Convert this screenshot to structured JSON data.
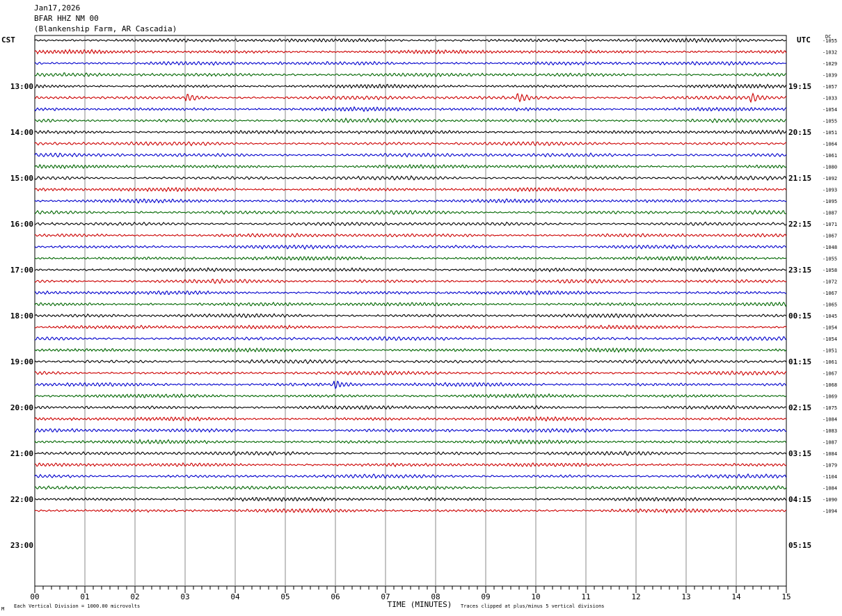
{
  "header": {
    "date": "Jan17,2026",
    "station": "BFAR HHZ NM 00",
    "location": "(Blankenship Farm, AR Cascadia)"
  },
  "corners": {
    "left_tz": "CST",
    "right_tz": "UTC",
    "dc_label": "DC"
  },
  "footer": {
    "scale_note": "Each Vertical Division = 1000.00 microvolts",
    "clip_note": "Traces clipped at plus/minus 5 vertical divisions",
    "corner_mark": "M"
  },
  "chart_data": {
    "type": "line",
    "chart_kind": "helicorder",
    "xlabel": "TIME (MINUTES)",
    "x_ticks": [
      "00",
      "01",
      "02",
      "03",
      "04",
      "05",
      "06",
      "07",
      "08",
      "09",
      "10",
      "11",
      "12",
      "13",
      "14",
      "15"
    ],
    "xlim": [
      0,
      15
    ],
    "hour_labels_local": [
      "13:00",
      "14:00",
      "15:00",
      "16:00",
      "17:00",
      "18:00",
      "19:00",
      "20:00",
      "21:00",
      "22:00",
      "23:00"
    ],
    "hour_labels_utc": [
      "19:15",
      "20:15",
      "21:15",
      "22:15",
      "23:15",
      "00:15",
      "01:15",
      "02:15",
      "03:15",
      "04:15",
      "05:15"
    ],
    "trace_colors": [
      "#000000",
      "#cc0000",
      "#0000cc",
      "#006600"
    ],
    "dc_offsets": [
      "-1055",
      "-1032",
      "-1029",
      "-1039",
      "-1057",
      "-1033",
      "-1054",
      "-1055",
      "-1051",
      "-1064",
      "-1061",
      "-1080",
      "-1092",
      "-1093",
      "-1095",
      "-1087",
      "-1071",
      "-1067",
      "-1048",
      "-1055",
      "-1058",
      "-1072",
      "-1067",
      "-1065",
      "-1045",
      "-1054",
      "-1054",
      "-1051",
      "-1061",
      "-1067",
      "-1068",
      "-1069",
      "-1075",
      "-1084",
      "-1083",
      "-1087",
      "-1084",
      "-1079",
      "-1104",
      "-1084",
      "-1090",
      "-1094"
    ],
    "traces_drawn": 42,
    "events": [
      {
        "trace": 5,
        "minute": 3.05,
        "description": "burst"
      },
      {
        "trace": 5,
        "minute": 9.65,
        "description": "burst"
      },
      {
        "trace": 5,
        "minute": 14.3,
        "description": "burst"
      },
      {
        "trace": 30,
        "minute": 6.0,
        "description": "burst"
      }
    ]
  }
}
